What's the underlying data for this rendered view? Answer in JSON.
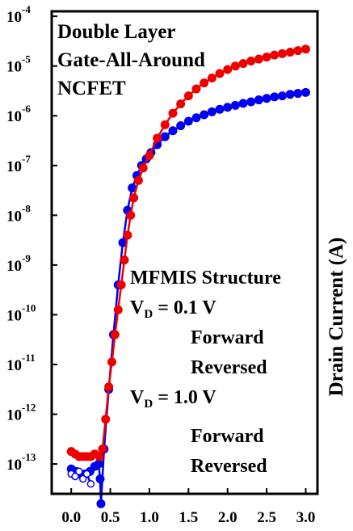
{
  "chart_data": {
    "type": "scatter",
    "title_lines": [
      "Double Layer",
      "Gate-All-Around",
      "NCFET"
    ],
    "ylabel": "Drain Current (A)",
    "y_scale": "log",
    "xlim": [
      -0.25,
      3.15
    ],
    "ylim_exp": [
      -13.6,
      -3.9
    ],
    "x_ticks": [
      "0.0",
      "0.5",
      "1.0",
      "1.5",
      "2.0",
      "2.5",
      "3.0"
    ],
    "y_ticks": [
      {
        "base": "10",
        "exp": "-4"
      },
      {
        "base": "10",
        "exp": "-5"
      },
      {
        "base": "10",
        "exp": "-6"
      },
      {
        "base": "10",
        "exp": "-7"
      },
      {
        "base": "10",
        "exp": "-8"
      },
      {
        "base": "10",
        "exp": "-9"
      },
      {
        "base": "10",
        "exp": "-10"
      },
      {
        "base": "10",
        "exp": "-11"
      },
      {
        "base": "10",
        "exp": "-12"
      },
      {
        "base": "10",
        "exp": "-13"
      }
    ],
    "annotations": {
      "structure": "MFMIS Structure",
      "vd1_prefix": "V",
      "vd1_sub": "D",
      "vd1_rest": " = 0.1 V",
      "forward1": "Forward",
      "reversed1": "Reversed",
      "vd2_prefix": "V",
      "vd2_sub": "D",
      "vd2_rest": " = 1.0 V",
      "forward2": "Forward",
      "reversed2": "Reversed"
    },
    "series": [
      {
        "color": "#0000ee",
        "marker": "filled-circle",
        "points": [
          [
            0.0,
            -13.1
          ],
          [
            0.06,
            -13.15
          ],
          [
            0.12,
            -13.2
          ],
          [
            0.18,
            -13.2
          ],
          [
            0.24,
            -13.15
          ],
          [
            0.3,
            -13.05
          ],
          [
            0.35,
            -13.0
          ],
          [
            0.37,
            -13.3
          ],
          [
            0.38,
            -13.8
          ],
          [
            0.42,
            -12.7
          ],
          [
            0.48,
            -11.5
          ],
          [
            0.54,
            -10.4
          ],
          [
            0.6,
            -9.4
          ],
          [
            0.66,
            -8.55
          ],
          [
            0.72,
            -7.9
          ],
          [
            0.78,
            -7.45
          ],
          [
            0.84,
            -7.2
          ],
          [
            0.9,
            -7.0
          ],
          [
            0.96,
            -6.87
          ],
          [
            1.02,
            -6.74
          ],
          [
            1.1,
            -6.58
          ],
          [
            1.2,
            -6.42
          ],
          [
            1.3,
            -6.3
          ],
          [
            1.4,
            -6.2
          ],
          [
            1.5,
            -6.11
          ],
          [
            1.6,
            -6.04
          ],
          [
            1.7,
            -5.98
          ],
          [
            1.8,
            -5.92
          ],
          [
            1.9,
            -5.87
          ],
          [
            2.0,
            -5.83
          ],
          [
            2.1,
            -5.79
          ],
          [
            2.2,
            -5.75
          ],
          [
            2.3,
            -5.72
          ],
          [
            2.4,
            -5.68
          ],
          [
            2.5,
            -5.65
          ],
          [
            2.6,
            -5.62
          ],
          [
            2.7,
            -5.6
          ],
          [
            2.8,
            -5.57
          ],
          [
            2.9,
            -5.55
          ],
          [
            3.0,
            -5.53
          ]
        ]
      },
      {
        "color": "#0000ee",
        "marker": "open-circle",
        "points": [
          [
            0.0,
            -13.2
          ],
          [
            0.05,
            -13.25
          ],
          [
            0.1,
            -13.15
          ],
          [
            0.15,
            -13.3
          ],
          [
            0.2,
            -13.2
          ],
          [
            0.25,
            -13.4
          ]
        ]
      },
      {
        "color": "#ee0000",
        "marker": "filled-circle",
        "points": [
          [
            0.0,
            -12.75
          ],
          [
            0.05,
            -12.8
          ],
          [
            0.1,
            -12.85
          ],
          [
            0.15,
            -12.85
          ],
          [
            0.2,
            -12.85
          ],
          [
            0.25,
            -12.85
          ],
          [
            0.3,
            -12.8
          ],
          [
            0.36,
            -12.85
          ],
          [
            0.4,
            -12.7
          ],
          [
            0.44,
            -12.1
          ],
          [
            0.48,
            -11.45
          ],
          [
            0.52,
            -10.95
          ],
          [
            0.56,
            -10.4
          ],
          [
            0.6,
            -9.9
          ],
          [
            0.64,
            -9.4
          ],
          [
            0.68,
            -8.9
          ],
          [
            0.72,
            -8.4
          ],
          [
            0.76,
            -8.0
          ],
          [
            0.8,
            -7.65
          ],
          [
            0.86,
            -7.3
          ],
          [
            0.92,
            -7.05
          ],
          [
            1.0,
            -6.8
          ],
          [
            1.1,
            -6.45
          ],
          [
            1.2,
            -6.18
          ],
          [
            1.3,
            -5.95
          ],
          [
            1.4,
            -5.76
          ],
          [
            1.5,
            -5.6
          ],
          [
            1.6,
            -5.46
          ],
          [
            1.7,
            -5.34
          ],
          [
            1.8,
            -5.24
          ],
          [
            1.9,
            -5.15
          ],
          [
            2.0,
            -5.07
          ],
          [
            2.1,
            -5.0
          ],
          [
            2.2,
            -4.95
          ],
          [
            2.3,
            -4.9
          ],
          [
            2.4,
            -4.86
          ],
          [
            2.5,
            -4.82
          ],
          [
            2.6,
            -4.78
          ],
          [
            2.7,
            -4.75
          ],
          [
            2.8,
            -4.72
          ],
          [
            2.9,
            -4.69
          ],
          [
            3.0,
            -4.66
          ]
        ]
      }
    ]
  }
}
